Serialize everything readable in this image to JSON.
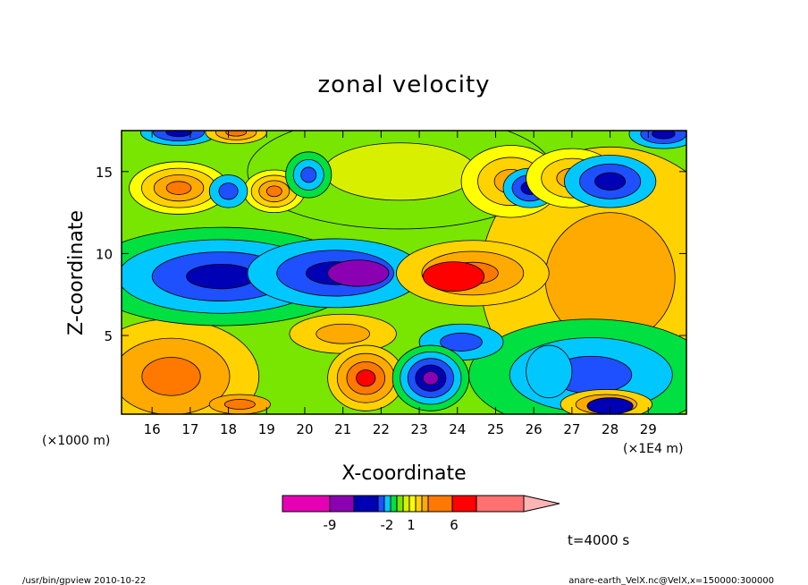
{
  "chart_data": {
    "type": "heatmap",
    "title": "zonal velocity",
    "xlabel": "X-coordinate",
    "ylabel": "Z-coordinate",
    "x_unit_left": "(×1000 m)",
    "x_unit_right": "(×1E4 m)",
    "xlim": [
      15.2,
      30.0
    ],
    "ylim": [
      0.2,
      17.5
    ],
    "x_ticks": [
      "16",
      "17",
      "18",
      "19",
      "20",
      "21",
      "22",
      "23",
      "24",
      "25",
      "26",
      "27",
      "28",
      "29"
    ],
    "y_ticks": [
      "5",
      "10",
      "15"
    ],
    "colorbar": {
      "ticks": [
        "-9",
        "-2",
        "1",
        "6"
      ],
      "colors": [
        "#e600b4",
        "#8c00b4",
        "#0000b4",
        "#1e50ff",
        "#00c8ff",
        "#00e040",
        "#78e600",
        "#d8f000",
        "#ffff00",
        "#ffd200",
        "#ffaa00",
        "#ff7800",
        "#ff0000",
        "#ff7070",
        "#ffb4b4"
      ]
    },
    "annotation": "t=4000 s",
    "grid": false
  },
  "footer": {
    "left": "/usr/bin/gpview   2010-10-22",
    "right": "anare-earth_VelX.nc@VelX,x=150000:300000"
  }
}
